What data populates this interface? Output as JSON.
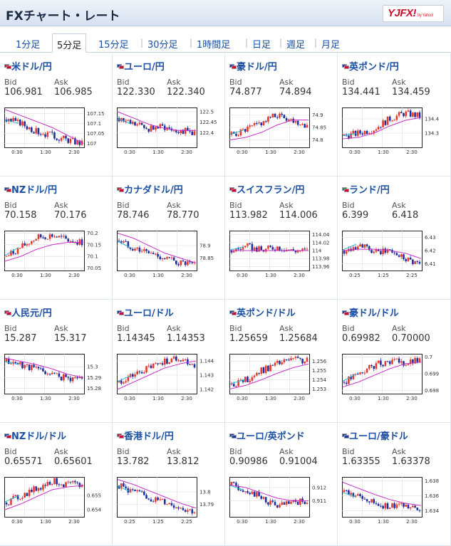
{
  "header": {
    "title": "FXチャート・レート",
    "logo_text": "YJFX!",
    "logo_sub": "by Yahoo!"
  },
  "tabs": [
    {
      "label": "1分足",
      "active": false
    },
    {
      "label": "5分足",
      "active": true
    },
    {
      "label": "15分足",
      "active": false
    },
    {
      "label": "30分足",
      "active": false
    },
    {
      "label": "1時間足",
      "active": false
    },
    {
      "label": "日足",
      "active": false
    },
    {
      "label": "週足",
      "active": false
    },
    {
      "label": "月足",
      "active": false
    }
  ],
  "labels": {
    "bid": "Bid",
    "ask": "Ask"
  },
  "colors": {
    "up": "#e8392f",
    "down": "#1e2f9e",
    "ma1": "#c930c9",
    "ma2": "#27b6d4",
    "grid": "#dcdcdc",
    "link": "#1b4fa3"
  },
  "pairs": [
    {
      "name": "米ドル/円",
      "bid": "106.981",
      "ask": "106.985",
      "flags": [
        "#c8102e",
        "#c8102e"
      ],
      "yticks": [
        "107.15",
        "107.1",
        "107.05",
        "107"
      ],
      "xticks": [
        "0:30",
        "1:30",
        "2:30"
      ],
      "chart_data": {
        "type": "candlestick",
        "ylim": [
          106.98,
          107.18
        ],
        "trend": [
          107.12,
          107.1,
          107.06,
          107.04,
          107.02,
          107.0
        ],
        "ma": [
          107.17,
          107.14,
          107.11,
          107.08,
          107.04,
          107.0
        ]
      }
    },
    {
      "name": "ユーロ/円",
      "bid": "122.330",
      "ask": "122.340",
      "flags": [
        "#1a3fa0",
        "#c8102e"
      ],
      "yticks": [
        "122.5",
        "122.45",
        "122.4"
      ],
      "xticks": [
        "0:30",
        "1:30",
        "2:30"
      ],
      "chart_data": {
        "type": "candlestick",
        "ylim": [
          122.33,
          122.52
        ],
        "trend": [
          122.47,
          122.44,
          122.42,
          122.43,
          122.41,
          122.4
        ],
        "ma": [
          122.5,
          122.47,
          122.44,
          122.42,
          122.41,
          122.41
        ]
      }
    },
    {
      "name": "豪ドル/円",
      "bid": "74.877",
      "ask": "74.894",
      "flags": [
        "#1a3fa0",
        "#c8102e"
      ],
      "yticks": [
        "74.9",
        "74.85",
        "74.8"
      ],
      "xticks": [
        "0:30",
        "1:30",
        "2:30"
      ],
      "chart_data": {
        "type": "candlestick",
        "ylim": [
          74.77,
          74.93
        ],
        "trend": [
          74.82,
          74.84,
          74.87,
          74.9,
          74.88,
          74.86
        ],
        "ma": [
          74.8,
          74.81,
          74.83,
          74.86,
          74.88,
          74.88
        ]
      }
    },
    {
      "name": "英ポンド/円",
      "bid": "134.441",
      "ask": "134.459",
      "flags": [
        "#1a3fa0",
        "#c8102e"
      ],
      "yticks": [
        "134.4",
        "134.3"
      ],
      "xticks": [
        "0:30",
        "1:30",
        "2:30"
      ],
      "chart_data": {
        "type": "candlestick",
        "ylim": [
          134.2,
          134.48
        ],
        "trend": [
          134.28,
          134.3,
          134.33,
          134.4,
          134.44,
          134.42
        ],
        "ma": [
          134.26,
          134.27,
          134.3,
          134.35,
          134.39,
          134.41
        ]
      }
    },
    {
      "name": "NZドル/円",
      "bid": "70.158",
      "ask": "70.176",
      "flags": [
        "#1a3fa0",
        "#c8102e"
      ],
      "yticks": [
        "70.2",
        "70.15",
        "70.1",
        "70.05"
      ],
      "xticks": [
        "0:30",
        "1:30",
        "2:30"
      ],
      "chart_data": {
        "type": "candlestick",
        "ylim": [
          70.04,
          70.21
        ],
        "trend": [
          70.1,
          70.14,
          70.18,
          70.19,
          70.17,
          70.16
        ],
        "ma": [
          70.08,
          70.1,
          70.13,
          70.15,
          70.16,
          70.16
        ]
      }
    },
    {
      "name": "カナダドル/円",
      "bid": "78.746",
      "ask": "78.770",
      "flags": [
        "#c8102e",
        "#c8102e"
      ],
      "yticks": [
        "78.9",
        "78.85"
      ],
      "xticks": [
        "0:30",
        "1:30",
        "2:30"
      ],
      "chart_data": {
        "type": "candlestick",
        "ylim": [
          78.8,
          78.96
        ],
        "trend": [
          78.92,
          78.89,
          78.87,
          78.85,
          78.83,
          78.82
        ],
        "ma": [
          78.95,
          78.93,
          78.9,
          78.87,
          78.85,
          78.83
        ]
      }
    },
    {
      "name": "スイスフラン/円",
      "bid": "113.982",
      "ask": "114.006",
      "flags": [
        "#c8102e",
        "#c8102e"
      ],
      "yticks": [
        "114.04",
        "114.02",
        "114",
        "113.98",
        "113.96"
      ],
      "xticks": [
        "0:30",
        "1:30",
        "2:30"
      ],
      "chart_data": {
        "type": "candlestick",
        "ylim": [
          113.95,
          114.05
        ],
        "trend": [
          114.0,
          114.01,
          114.0,
          114.01,
          114.0,
          114.0
        ],
        "ma": [
          114.0,
          114.0,
          114.0,
          114.0,
          114.0,
          114.0
        ]
      }
    },
    {
      "name": "ランド/円",
      "bid": "6.399",
      "ask": "6.418",
      "flags": [
        "#2a8a3a",
        "#c8102e"
      ],
      "yticks": [
        "6.43",
        "6.42",
        "6.41"
      ],
      "xticks": [
        "0:25",
        "1:25",
        "2:25"
      ],
      "chart_data": {
        "type": "candlestick",
        "ylim": [
          6.405,
          6.435
        ],
        "trend": [
          6.42,
          6.425,
          6.418,
          6.42,
          6.415,
          6.41
        ],
        "ma": [
          6.42,
          6.421,
          6.421,
          6.42,
          6.418,
          6.414
        ]
      }
    },
    {
      "name": "人民元/円",
      "bid": "15.287",
      "ask": "15.317",
      "flags": [
        "#c8102e",
        "#c8102e"
      ],
      "yticks": [
        "15.3",
        "15.29",
        "15.28"
      ],
      "xticks": [
        "0:30",
        "1:30",
        "2:30"
      ],
      "chart_data": {
        "type": "candlestick",
        "ylim": [
          15.275,
          15.312
        ],
        "trend": [
          15.305,
          15.302,
          15.298,
          15.293,
          15.289,
          15.29
        ],
        "ma": [
          15.308,
          15.305,
          15.302,
          15.298,
          15.293,
          15.29
        ]
      }
    },
    {
      "name": "ユーロ/ドル",
      "bid": "1.14345",
      "ask": "1.14353",
      "flags": [
        "#1a3fa0",
        "#c8102e"
      ],
      "yticks": [
        "1.144",
        "1.143",
        "1.142"
      ],
      "xticks": [
        "0:30",
        "1:30",
        "2:30"
      ],
      "chart_data": {
        "type": "candlestick",
        "ylim": [
          1.1417,
          1.1445
        ],
        "trend": [
          1.1425,
          1.143,
          1.1435,
          1.144,
          1.1442,
          1.1437
        ],
        "ma": [
          1.142,
          1.1425,
          1.143,
          1.1435,
          1.1438,
          1.144
        ]
      }
    },
    {
      "name": "英ポンド/ドル",
      "bid": "1.25659",
      "ask": "1.25684",
      "flags": [
        "#1a3fa0",
        "#c8102e"
      ],
      "yticks": [
        "1.256",
        "1.255",
        "1.254",
        "1.253"
      ],
      "xticks": [
        "0:30",
        "1:30",
        "2:30"
      ],
      "chart_data": {
        "type": "candlestick",
        "ylim": [
          1.2525,
          1.2568
        ],
        "trend": [
          1.2535,
          1.254,
          1.255,
          1.2557,
          1.2562,
          1.256
        ],
        "ma": [
          1.253,
          1.2534,
          1.254,
          1.2547,
          1.2553,
          1.2557
        ]
      }
    },
    {
      "name": "豪ドル/ドル",
      "bid": "0.69982",
      "ask": "0.70000",
      "flags": [
        "#1a3fa0",
        "#c8102e"
      ],
      "yticks": [
        "0.7",
        "0.699",
        "0.698"
      ],
      "xticks": [
        "0:30",
        "1:30",
        "2:30"
      ],
      "chart_data": {
        "type": "candlestick",
        "ylim": [
          0.6978,
          0.7002
        ],
        "trend": [
          0.6985,
          0.699,
          0.6995,
          0.6998,
          0.6996,
          0.6998
        ],
        "ma": [
          0.6982,
          0.6985,
          0.6989,
          0.6993,
          0.6996,
          0.6997
        ]
      }
    },
    {
      "name": "NZドル/ドル",
      "bid": "0.65571",
      "ask": "0.65601",
      "flags": [
        "#1a3fa0",
        "#c8102e"
      ],
      "yticks": [
        "0.655",
        "0.654"
      ],
      "xticks": [
        "0:30",
        "1:30",
        "2:30"
      ],
      "chart_data": {
        "type": "candlestick",
        "ylim": [
          0.6535,
          0.6563
        ],
        "trend": [
          0.6545,
          0.655,
          0.6555,
          0.656,
          0.6558,
          0.6557
        ],
        "ma": [
          0.654,
          0.6544,
          0.6549,
          0.6554,
          0.6556,
          0.6557
        ]
      }
    },
    {
      "name": "香港ドル/円",
      "bid": "13.782",
      "ask": "13.812",
      "flags": [
        "#c8102e",
        "#c8102e"
      ],
      "yticks": [
        "13.8",
        "13.79"
      ],
      "xticks": [
        "0:25",
        "1:25",
        "2:25"
      ],
      "chart_data": {
        "type": "candlestick",
        "ylim": [
          13.78,
          13.812
        ],
        "trend": [
          13.805,
          13.8,
          13.795,
          13.792,
          13.788,
          13.784
        ],
        "ma": [
          13.81,
          13.806,
          13.801,
          13.796,
          13.791,
          13.787
        ]
      }
    },
    {
      "name": "ユーロ/英ポンド",
      "bid": "0.90986",
      "ask": "0.91004",
      "flags": [
        "#1a3fa0",
        "#1a3fa0"
      ],
      "yticks": [
        "0.912",
        "0.911"
      ],
      "xticks": [
        "0:30",
        "1:30",
        "2:30"
      ],
      "chart_data": {
        "type": "candlestick",
        "ylim": [
          0.9098,
          0.9128
        ],
        "trend": [
          0.9122,
          0.9118,
          0.9112,
          0.9106,
          0.9108,
          0.911
        ],
        "ma": [
          0.9122,
          0.912,
          0.9116,
          0.9112,
          0.911,
          0.911
        ]
      }
    },
    {
      "name": "ユーロ/豪ドル",
      "bid": "1.63355",
      "ask": "1.63378",
      "flags": [
        "#1a3fa0",
        "#1a3fa0"
      ],
      "yticks": [
        "1.638",
        "1.636",
        "1.634"
      ],
      "xticks": [
        "0:30",
        "1:30",
        "2:30"
      ],
      "chart_data": {
        "type": "candlestick",
        "ylim": [
          1.6332,
          1.6385
        ],
        "trend": [
          1.6365,
          1.6358,
          1.635,
          1.6345,
          1.6348,
          1.6345
        ],
        "ma": [
          1.6378,
          1.637,
          1.6362,
          1.6355,
          1.635,
          1.6347
        ]
      }
    }
  ]
}
